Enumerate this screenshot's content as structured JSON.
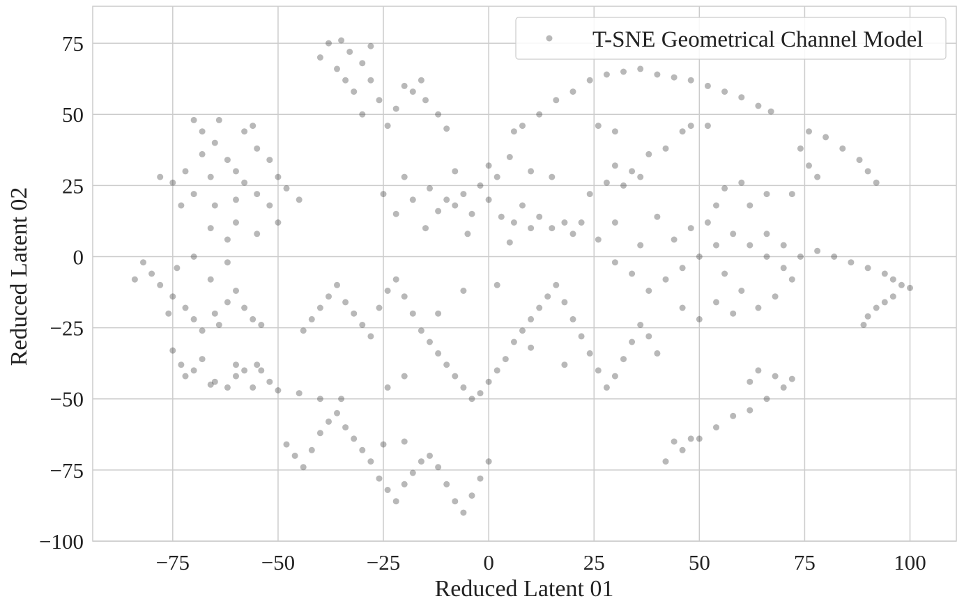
{
  "chart_data": {
    "type": "scatter",
    "title": "",
    "xlabel": "Reduced Latent 01",
    "ylabel": "Reduced Latent 02",
    "xlim": [
      -94,
      111
    ],
    "ylim": [
      -100,
      88
    ],
    "xticks": [
      -75,
      -50,
      -25,
      0,
      25,
      50,
      75,
      100
    ],
    "xtick_labels": [
      "−75",
      "−50",
      "−25",
      "0",
      "25",
      "50",
      "75",
      "100"
    ],
    "yticks": [
      -100,
      -75,
      -50,
      -25,
      0,
      25,
      50,
      75
    ],
    "ytick_labels": [
      "−100",
      "−75",
      "−50",
      "−25",
      "0",
      "25",
      "50",
      "75"
    ],
    "grid": true,
    "legend_position": "top-right",
    "point_color": "#333333",
    "point_opacity": 0.35,
    "grid_color": "#cccccc",
    "series": [
      {
        "name": "T-SNE Geometrical Channel Model",
        "points": [
          [
            -10,
            20
          ],
          [
            -8,
            18
          ],
          [
            -6,
            22
          ],
          [
            -12,
            16
          ],
          [
            -4,
            15
          ],
          [
            0,
            20
          ],
          [
            3,
            14
          ],
          [
            6,
            12
          ],
          [
            -2,
            25
          ],
          [
            -14,
            24
          ],
          [
            2,
            28
          ],
          [
            8,
            18
          ],
          [
            10,
            10
          ],
          [
            12,
            14
          ],
          [
            15,
            10
          ],
          [
            18,
            12
          ],
          [
            20,
            8
          ],
          [
            22,
            12
          ],
          [
            5,
            5
          ],
          [
            -5,
            8
          ],
          [
            -15,
            10
          ],
          [
            -18,
            20
          ],
          [
            -20,
            28
          ],
          [
            -22,
            15
          ],
          [
            -25,
            22
          ],
          [
            0,
            32
          ],
          [
            5,
            35
          ],
          [
            10,
            30
          ],
          [
            15,
            28
          ],
          [
            -8,
            30
          ],
          [
            -35,
            76
          ],
          [
            -33,
            72
          ],
          [
            -30,
            68
          ],
          [
            -28,
            62
          ],
          [
            -32,
            58
          ],
          [
            -36,
            66
          ],
          [
            -40,
            70
          ],
          [
            -26,
            55
          ],
          [
            -30,
            50
          ],
          [
            -24,
            46
          ],
          [
            -20,
            60
          ],
          [
            -18,
            58
          ],
          [
            -15,
            55
          ],
          [
            -12,
            50
          ],
          [
            -10,
            45
          ],
          [
            -38,
            75
          ],
          [
            -28,
            74
          ],
          [
            -34,
            62
          ],
          [
            -22,
            52
          ],
          [
            -16,
            62
          ],
          [
            -70,
            48
          ],
          [
            -68,
            44
          ],
          [
            -65,
            40
          ],
          [
            -62,
            34
          ],
          [
            -60,
            30
          ],
          [
            -58,
            26
          ],
          [
            -55,
            22
          ],
          [
            -52,
            18
          ],
          [
            -50,
            12
          ],
          [
            -55,
            8
          ],
          [
            -60,
            12
          ],
          [
            -65,
            18
          ],
          [
            -70,
            22
          ],
          [
            -72,
            30
          ],
          [
            -75,
            26
          ],
          [
            -78,
            28
          ],
          [
            -68,
            36
          ],
          [
            -64,
            48
          ],
          [
            -58,
            44
          ],
          [
            -55,
            38
          ],
          [
            -50,
            28
          ],
          [
            -48,
            24
          ],
          [
            -45,
            20
          ],
          [
            -62,
            6
          ],
          [
            -66,
            10
          ],
          [
            -73,
            18
          ],
          [
            -56,
            46
          ],
          [
            -52,
            34
          ],
          [
            -60,
            20
          ],
          [
            -66,
            28
          ],
          [
            -82,
            -2
          ],
          [
            -80,
            -6
          ],
          [
            -78,
            -10
          ],
          [
            -75,
            -14
          ],
          [
            -72,
            -18
          ],
          [
            -70,
            -22
          ],
          [
            -68,
            -26
          ],
          [
            -65,
            -20
          ],
          [
            -62,
            -16
          ],
          [
            -60,
            -12
          ],
          [
            -58,
            -18
          ],
          [
            -56,
            -22
          ],
          [
            -54,
            -24
          ],
          [
            -74,
            -4
          ],
          [
            -70,
            0
          ],
          [
            -66,
            -8
          ],
          [
            -62,
            -2
          ],
          [
            -84,
            -8
          ],
          [
            -76,
            -20
          ],
          [
            -64,
            -24
          ],
          [
            -75,
            -33
          ],
          [
            -73,
            -38
          ],
          [
            -70,
            -40
          ],
          [
            -68,
            -36
          ],
          [
            -65,
            -44
          ],
          [
            -62,
            -46
          ],
          [
            -60,
            -42
          ],
          [
            -58,
            -40
          ],
          [
            -55,
            -38
          ],
          [
            -52,
            -44
          ],
          [
            -50,
            -47
          ],
          [
            -56,
            -46
          ],
          [
            -72,
            -42
          ],
          [
            -66,
            -45
          ],
          [
            -54,
            -40
          ],
          [
            -60,
            -38
          ],
          [
            -48,
            -66
          ],
          [
            -46,
            -70
          ],
          [
            -44,
            -74
          ],
          [
            -42,
            -68
          ],
          [
            -40,
            -62
          ],
          [
            -38,
            -58
          ],
          [
            -36,
            -55
          ],
          [
            -34,
            -60
          ],
          [
            -32,
            -64
          ],
          [
            -30,
            -68
          ],
          [
            -28,
            -72
          ],
          [
            -26,
            -78
          ],
          [
            -24,
            -82
          ],
          [
            -22,
            -86
          ],
          [
            -20,
            -80
          ],
          [
            -18,
            -76
          ],
          [
            -16,
            -72
          ],
          [
            -14,
            -70
          ],
          [
            -12,
            -74
          ],
          [
            -10,
            -80
          ],
          [
            -8,
            -86
          ],
          [
            -6,
            -90
          ],
          [
            -4,
            -84
          ],
          [
            -2,
            -78
          ],
          [
            0,
            -72
          ],
          [
            -45,
            -48
          ],
          [
            -40,
            -50
          ],
          [
            -35,
            -50
          ],
          [
            -25,
            -66
          ],
          [
            -20,
            -65
          ],
          [
            -44,
            -26
          ],
          [
            -42,
            -22
          ],
          [
            -40,
            -18
          ],
          [
            -38,
            -14
          ],
          [
            -36,
            -10
          ],
          [
            -34,
            -16
          ],
          [
            -32,
            -20
          ],
          [
            -30,
            -24
          ],
          [
            -28,
            -28
          ],
          [
            -26,
            -18
          ],
          [
            -24,
            -12
          ],
          [
            -22,
            -8
          ],
          [
            -20,
            -14
          ],
          [
            -18,
            -20
          ],
          [
            -16,
            -26
          ],
          [
            -14,
            -30
          ],
          [
            -12,
            -34
          ],
          [
            -10,
            -38
          ],
          [
            -8,
            -42
          ],
          [
            -6,
            -46
          ],
          [
            -4,
            -50
          ],
          [
            -2,
            -48
          ],
          [
            0,
            -44
          ],
          [
            2,
            -40
          ],
          [
            4,
            -36
          ],
          [
            6,
            -30
          ],
          [
            8,
            -26
          ],
          [
            10,
            -22
          ],
          [
            12,
            -18
          ],
          [
            14,
            -14
          ],
          [
            16,
            -10
          ],
          [
            18,
            -16
          ],
          [
            20,
            -22
          ],
          [
            22,
            -28
          ],
          [
            24,
            -34
          ],
          [
            26,
            -40
          ],
          [
            28,
            -46
          ],
          [
            30,
            -42
          ],
          [
            32,
            -36
          ],
          [
            34,
            -30
          ],
          [
            36,
            -24
          ],
          [
            38,
            -28
          ],
          [
            40,
            -34
          ],
          [
            -20,
            -42
          ],
          [
            -24,
            -46
          ],
          [
            -12,
            -20
          ],
          [
            -6,
            -12
          ],
          [
            2,
            -10
          ],
          [
            10,
            -32
          ],
          [
            18,
            -38
          ],
          [
            38,
            -12
          ],
          [
            42,
            -8
          ],
          [
            46,
            -4
          ],
          [
            50,
            0
          ],
          [
            54,
            4
          ],
          [
            58,
            8
          ],
          [
            62,
            4
          ],
          [
            66,
            0
          ],
          [
            70,
            -4
          ],
          [
            72,
            -8
          ],
          [
            44,
            6
          ],
          [
            48,
            10
          ],
          [
            52,
            12
          ],
          [
            56,
            -6
          ],
          [
            60,
            -12
          ],
          [
            64,
            -18
          ],
          [
            68,
            -14
          ],
          [
            46,
            -18
          ],
          [
            50,
            -22
          ],
          [
            54,
            -16
          ],
          [
            30,
            -2
          ],
          [
            34,
            -6
          ],
          [
            26,
            6
          ],
          [
            30,
            12
          ],
          [
            36,
            4
          ],
          [
            40,
            14
          ],
          [
            66,
            8
          ],
          [
            70,
            4
          ],
          [
            74,
            0
          ],
          [
            58,
            -20
          ],
          [
            28,
            64
          ],
          [
            32,
            65
          ],
          [
            36,
            66
          ],
          [
            40,
            64
          ],
          [
            44,
            63
          ],
          [
            48,
            62
          ],
          [
            52,
            60
          ],
          [
            56,
            58
          ],
          [
            60,
            56
          ],
          [
            64,
            53
          ],
          [
            67,
            51
          ],
          [
            24,
            62
          ],
          [
            20,
            58
          ],
          [
            16,
            55
          ],
          [
            12,
            50
          ],
          [
            8,
            46
          ],
          [
            6,
            44
          ],
          [
            26,
            46
          ],
          [
            30,
            44
          ],
          [
            46,
            44
          ],
          [
            48,
            46
          ],
          [
            52,
            46
          ],
          [
            42,
            38
          ],
          [
            38,
            36
          ],
          [
            36,
            28
          ],
          [
            32,
            25
          ],
          [
            28,
            26
          ],
          [
            30,
            32
          ],
          [
            34,
            30
          ],
          [
            24,
            22
          ],
          [
            76,
            44
          ],
          [
            80,
            42
          ],
          [
            84,
            38
          ],
          [
            88,
            34
          ],
          [
            90,
            30
          ],
          [
            92,
            26
          ],
          [
            74,
            38
          ],
          [
            76,
            32
          ],
          [
            78,
            28
          ],
          [
            72,
            22
          ],
          [
            66,
            22
          ],
          [
            62,
            18
          ],
          [
            60,
            26
          ],
          [
            56,
            24
          ],
          [
            54,
            18
          ],
          [
            78,
            2
          ],
          [
            82,
            0
          ],
          [
            86,
            -2
          ],
          [
            90,
            -4
          ],
          [
            94,
            -6
          ],
          [
            96,
            -8
          ],
          [
            98,
            -10
          ],
          [
            100,
            -11
          ],
          [
            96,
            -14
          ],
          [
            94,
            -16
          ],
          [
            92,
            -18
          ],
          [
            90,
            -21
          ],
          [
            89,
            -24
          ],
          [
            42,
            -72
          ],
          [
            46,
            -68
          ],
          [
            50,
            -64
          ],
          [
            54,
            -60
          ],
          [
            58,
            -56
          ],
          [
            62,
            -54
          ],
          [
            66,
            -50
          ],
          [
            70,
            -46
          ],
          [
            72,
            -43
          ],
          [
            68,
            -42
          ],
          [
            64,
            -40
          ],
          [
            62,
            -44
          ],
          [
            44,
            -65
          ],
          [
            48,
            -64
          ]
        ]
      }
    ]
  },
  "legend": {
    "label": "T-SNE Geometrical Channel Model"
  }
}
